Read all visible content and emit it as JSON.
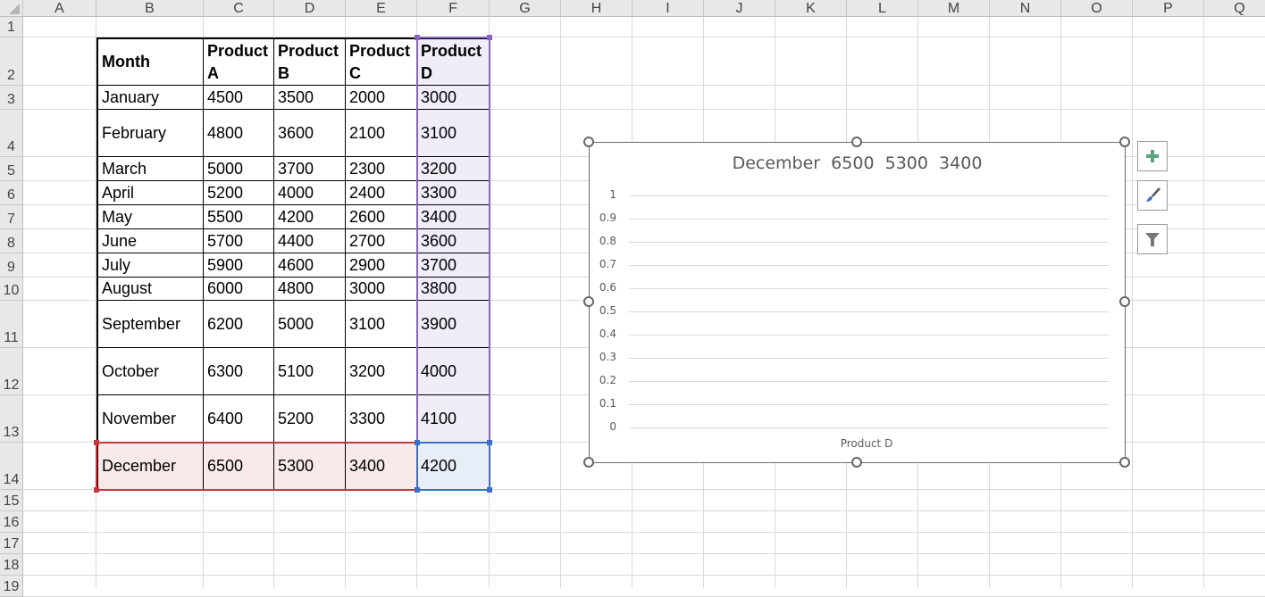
{
  "sheet": {
    "columns": [
      "A",
      "B",
      "C",
      "D",
      "E",
      "F",
      "G",
      "H",
      "I",
      "J",
      "K",
      "L",
      "M",
      "N",
      "O",
      "P",
      "Q"
    ],
    "rows": [
      "1",
      "2",
      "3",
      "4",
      "5",
      "6",
      "7",
      "8",
      "9",
      "10",
      "11",
      "12",
      "13",
      "14",
      "15",
      "16",
      "17",
      "18",
      "19"
    ]
  },
  "table": {
    "headers": [
      "Month",
      "Product A",
      "Product B",
      "Product C",
      "Product D"
    ],
    "rows": [
      [
        "January",
        "4500",
        "3500",
        "2000",
        "3000"
      ],
      [
        "February",
        "4800",
        "3600",
        "2100",
        "3100"
      ],
      [
        "March",
        "5000",
        "3700",
        "2300",
        "3200"
      ],
      [
        "April",
        "5200",
        "4000",
        "2400",
        "3300"
      ],
      [
        "May",
        "5500",
        "4200",
        "2600",
        "3400"
      ],
      [
        "June",
        "5700",
        "4400",
        "2700",
        "3600"
      ],
      [
        "July",
        "5900",
        "4600",
        "2900",
        "3700"
      ],
      [
        "August",
        "6000",
        "4800",
        "3000",
        "3800"
      ],
      [
        "September",
        "6200",
        "5000",
        "3100",
        "3900"
      ],
      [
        "October",
        "6300",
        "5100",
        "3200",
        "4000"
      ],
      [
        "November",
        "6400",
        "5200",
        "3300",
        "4100"
      ],
      [
        "December",
        "6500",
        "5300",
        "3400",
        "4200"
      ]
    ]
  },
  "highlight_colors": {
    "series_range": "#8a63c0",
    "category_range": "#c0393f",
    "value_range": "#3a6fc8"
  },
  "chart_data": {
    "type": "bar",
    "title": "December  6500  5300  3400",
    "categories": [
      "Product D"
    ],
    "series": [],
    "yticks": [
      "0",
      "0.1",
      "0.2",
      "0.3",
      "0.4",
      "0.5",
      "0.6",
      "0.7",
      "0.8",
      "0.9",
      "1"
    ],
    "ylim": [
      0,
      1
    ],
    "grid": true,
    "xlabel": "",
    "ylabel": ""
  },
  "chart_buttons": {
    "elements": "plus-icon",
    "styles": "paintbrush-icon",
    "filters": "funnel-icon"
  }
}
